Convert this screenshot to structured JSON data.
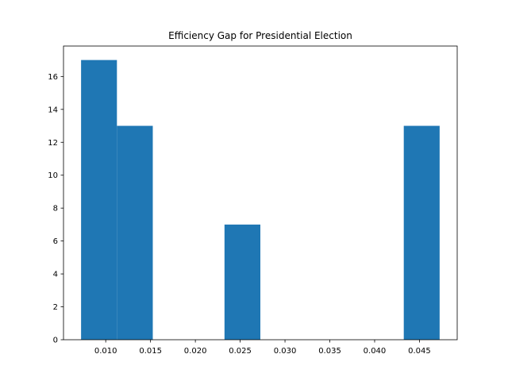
{
  "chart_data": {
    "type": "bar",
    "title": "Efficiency Gap for Presidential Election",
    "xlabel": "",
    "ylabel": "",
    "bar_color": "#1f77b4",
    "bins": [
      {
        "x0": 0.00725,
        "x1": 0.01125,
        "count": 17
      },
      {
        "x0": 0.01125,
        "x1": 0.01525,
        "count": 13
      },
      {
        "x0": 0.01525,
        "x1": 0.01925,
        "count": 0
      },
      {
        "x0": 0.01925,
        "x1": 0.02325,
        "count": 0
      },
      {
        "x0": 0.02325,
        "x1": 0.02725,
        "count": 7
      },
      {
        "x0": 0.02725,
        "x1": 0.03125,
        "count": 0
      },
      {
        "x0": 0.03125,
        "x1": 0.03525,
        "count": 0
      },
      {
        "x0": 0.03525,
        "x1": 0.03925,
        "count": 0
      },
      {
        "x0": 0.03925,
        "x1": 0.04325,
        "count": 0
      },
      {
        "x0": 0.04325,
        "x1": 0.04725,
        "count": 13
      }
    ],
    "xlim": [
      0.00529,
      0.04921
    ],
    "ylim": [
      0,
      17.85
    ],
    "xticks": [
      {
        "value": 0.01,
        "label": "0.010"
      },
      {
        "value": 0.015,
        "label": "0.015"
      },
      {
        "value": 0.02,
        "label": "0.020"
      },
      {
        "value": 0.025,
        "label": "0.025"
      },
      {
        "value": 0.03,
        "label": "0.030"
      },
      {
        "value": 0.035,
        "label": "0.035"
      },
      {
        "value": 0.04,
        "label": "0.040"
      },
      {
        "value": 0.045,
        "label": "0.045"
      }
    ],
    "yticks": [
      {
        "value": 0,
        "label": "0"
      },
      {
        "value": 2,
        "label": "2"
      },
      {
        "value": 4,
        "label": "4"
      },
      {
        "value": 6,
        "label": "6"
      },
      {
        "value": 8,
        "label": "8"
      },
      {
        "value": 10,
        "label": "10"
      },
      {
        "value": 12,
        "label": "12"
      },
      {
        "value": 14,
        "label": "14"
      },
      {
        "value": 16,
        "label": "16"
      }
    ],
    "grid": false,
    "legend": "none"
  }
}
